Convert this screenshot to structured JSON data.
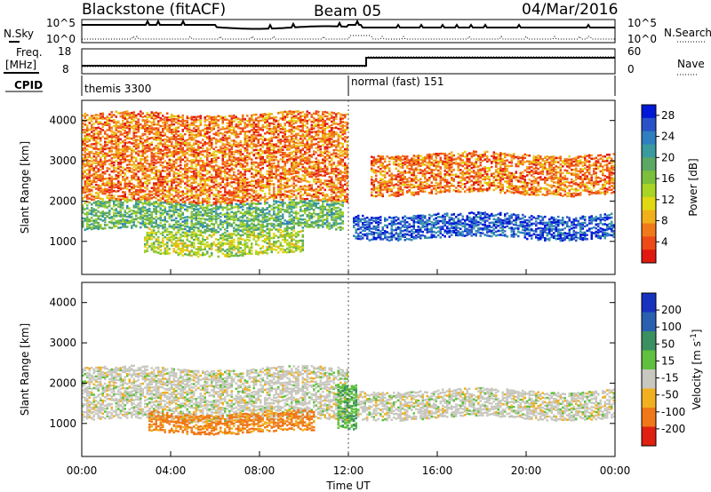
{
  "header": {
    "radar": "Blackstone (fitACF)",
    "beam": "Beam 05",
    "date": "04/Mar/2016"
  },
  "noise_panel": {
    "left_label": "N.Sky",
    "right_label": "N.Search",
    "left_ticks": [
      "10^5",
      "10^0"
    ],
    "right_ticks": [
      "10^5",
      "10^0"
    ]
  },
  "freq_panel": {
    "left_label_1": "Freq.",
    "left_label_2": "[MHz]",
    "right_label": "Nave",
    "left_ticks": [
      "18",
      "8"
    ],
    "right_ticks": [
      "60",
      "0"
    ]
  },
  "cpid_panel": {
    "label": "CPID",
    "modes": [
      {
        "name": "themis 3300",
        "start_hour": 0
      },
      {
        "name": "normal (fast) 151",
        "start_hour": 12
      }
    ]
  },
  "chart_data": [
    {
      "type": "heatmap",
      "panel": "power",
      "xlabel": "Time UT",
      "ylabel": "Slant Range [km]",
      "xlim": [
        0,
        24
      ],
      "ylim": [
        180,
        4500
      ],
      "y_ticks": [
        1000,
        2000,
        3000,
        4000
      ],
      "colorbar": {
        "label": "Power [dB]",
        "ticks": [
          "4",
          "8",
          "12",
          "16",
          "20",
          "24",
          "28"
        ],
        "range": [
          0,
          30
        ],
        "colors": [
          "#0018d8",
          "#2a52c8",
          "#2f7ec0",
          "#3a9aa0",
          "#5aa864",
          "#7bbf3c",
          "#a8d424",
          "#e0d810",
          "#f0b01a",
          "#f07a1a",
          "#ee4a18",
          "#e01810"
        ]
      },
      "bands": [
        {
          "hours": [
            0,
            11.8
          ],
          "range_km": [
            1300,
            2000
          ],
          "mean_power_db": 18
        },
        {
          "hours": [
            2.8,
            10
          ],
          "range_km": [
            700,
            1300
          ],
          "mean_power_db": 14
        },
        {
          "hours": [
            0,
            12
          ],
          "range_km": [
            2000,
            4200
          ],
          "mean_power_db": 6
        },
        {
          "hours": [
            12.2,
            24
          ],
          "range_km": [
            1100,
            1700
          ],
          "mean_power_db": 26
        },
        {
          "hours": [
            13,
            24
          ],
          "range_km": [
            2200,
            3200
          ],
          "mean_power_db": 6
        }
      ]
    },
    {
      "type": "heatmap",
      "panel": "velocity",
      "xlabel": "Time UT",
      "ylabel": "Slant Range [km]",
      "xlim": [
        0,
        24
      ],
      "ylim": [
        180,
        4500
      ],
      "y_ticks": [
        1000,
        2000,
        3000,
        4000
      ],
      "colorbar": {
        "label": "Velocity [m s^-1]",
        "ticks": [
          "200",
          "100",
          "50",
          "15",
          "-15",
          "-50",
          "-100",
          "-200"
        ],
        "colors": [
          "#1832c0",
          "#2a60b0",
          "#3a9060",
          "#60c040",
          "#c8c8c0",
          "#f0b020",
          "#f07818",
          "#e02010"
        ]
      },
      "bands": [
        {
          "hours": [
            0,
            12
          ],
          "range_km": [
            1100,
            2400
          ],
          "mean_velocity_ms": 0
        },
        {
          "hours": [
            3,
            10.5
          ],
          "range_km": [
            800,
            1300
          ],
          "mean_velocity_ms": -60
        },
        {
          "hours": [
            12.3,
            24
          ],
          "range_km": [
            1150,
            1850
          ],
          "mean_velocity_ms": 0
        },
        {
          "hours": [
            11.5,
            12.3
          ],
          "range_km": [
            900,
            2000
          ],
          "mean_velocity_ms": 40
        }
      ]
    }
  ],
  "x_axis": {
    "ticks": [
      "00:00",
      "04:00",
      "08:00",
      "12:00",
      "16:00",
      "20:00",
      "00:00"
    ],
    "label": "Time UT"
  }
}
